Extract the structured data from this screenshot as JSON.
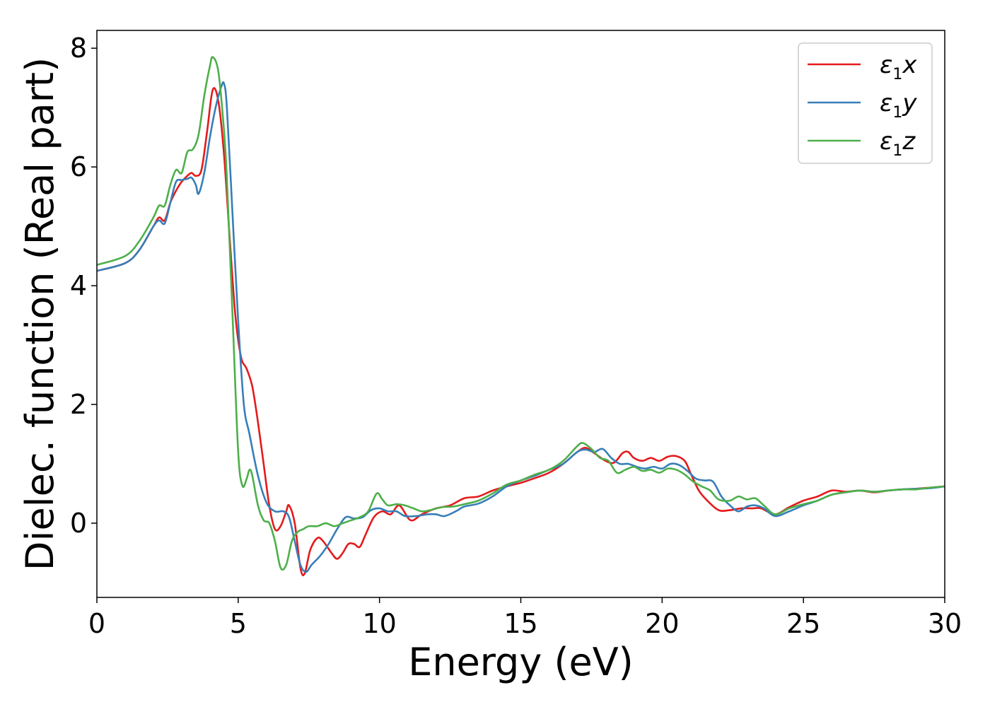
{
  "chart_data": {
    "type": "line",
    "xlabel": "Energy (eV)",
    "ylabel": "Dielec. function (Real part)",
    "xlim": [
      0,
      30
    ],
    "ylim": [
      -1.25,
      8.3
    ],
    "xticks": [
      0,
      5,
      10,
      15,
      20,
      25,
      30
    ],
    "yticks": [
      0,
      2,
      4,
      6,
      8
    ],
    "grid": false,
    "legend_position": "top-right",
    "series": [
      {
        "name": "ε1x",
        "color": "#e41a1c",
        "legend_symbol": "ε",
        "legend_sub": "1",
        "legend_suffix": "x",
        "points": [
          [
            0,
            4.25
          ],
          [
            1,
            4.38
          ],
          [
            1.5,
            4.6
          ],
          [
            2,
            5.0
          ],
          [
            2.2,
            5.15
          ],
          [
            2.4,
            5.1
          ],
          [
            2.6,
            5.4
          ],
          [
            2.8,
            5.6
          ],
          [
            3.0,
            5.75
          ],
          [
            3.2,
            5.85
          ],
          [
            3.35,
            5.9
          ],
          [
            3.5,
            5.85
          ],
          [
            3.7,
            5.95
          ],
          [
            3.9,
            6.6
          ],
          [
            4.1,
            7.3
          ],
          [
            4.3,
            7.1
          ],
          [
            4.5,
            6.2
          ],
          [
            4.7,
            4.8
          ],
          [
            4.9,
            3.5
          ],
          [
            5.1,
            2.8
          ],
          [
            5.3,
            2.6
          ],
          [
            5.5,
            2.3
          ],
          [
            5.7,
            1.7
          ],
          [
            5.9,
            1.0
          ],
          [
            6.1,
            0.3
          ],
          [
            6.3,
            -0.1
          ],
          [
            6.5,
            -0.05
          ],
          [
            6.7,
            0.2
          ],
          [
            6.8,
            0.3
          ],
          [
            7.0,
            0.0
          ],
          [
            7.2,
            -0.75
          ],
          [
            7.35,
            -0.85
          ],
          [
            7.55,
            -0.45
          ],
          [
            7.8,
            -0.25
          ],
          [
            8.0,
            -0.3
          ],
          [
            8.3,
            -0.5
          ],
          [
            8.5,
            -0.6
          ],
          [
            8.7,
            -0.5
          ],
          [
            8.9,
            -0.35
          ],
          [
            9.1,
            -0.35
          ],
          [
            9.3,
            -0.4
          ],
          [
            9.5,
            -0.2
          ],
          [
            9.8,
            0.1
          ],
          [
            10.1,
            0.2
          ],
          [
            10.4,
            0.15
          ],
          [
            10.7,
            0.3
          ],
          [
            11.1,
            0.05
          ],
          [
            11.5,
            0.15
          ],
          [
            12.0,
            0.25
          ],
          [
            12.5,
            0.3
          ],
          [
            13.0,
            0.42
          ],
          [
            13.5,
            0.45
          ],
          [
            14.0,
            0.55
          ],
          [
            14.5,
            0.62
          ],
          [
            15.0,
            0.68
          ],
          [
            15.5,
            0.76
          ],
          [
            16.0,
            0.85
          ],
          [
            16.5,
            1.0
          ],
          [
            17.0,
            1.2
          ],
          [
            17.3,
            1.27
          ],
          [
            17.6,
            1.18
          ],
          [
            18.0,
            1.05
          ],
          [
            18.3,
            1.02
          ],
          [
            18.6,
            1.18
          ],
          [
            18.8,
            1.2
          ],
          [
            19.0,
            1.1
          ],
          [
            19.3,
            1.05
          ],
          [
            19.6,
            1.1
          ],
          [
            19.9,
            1.05
          ],
          [
            20.2,
            1.12
          ],
          [
            20.5,
            1.13
          ],
          [
            20.8,
            1.05
          ],
          [
            21.0,
            0.85
          ],
          [
            21.3,
            0.55
          ],
          [
            21.6,
            0.38
          ],
          [
            22.0,
            0.22
          ],
          [
            22.4,
            0.22
          ],
          [
            22.8,
            0.25
          ],
          [
            23.2,
            0.25
          ],
          [
            23.5,
            0.25
          ],
          [
            24.0,
            0.15
          ],
          [
            24.5,
            0.27
          ],
          [
            25.0,
            0.38
          ],
          [
            25.5,
            0.45
          ],
          [
            26.0,
            0.55
          ],
          [
            26.5,
            0.53
          ],
          [
            27.0,
            0.55
          ],
          [
            27.5,
            0.52
          ],
          [
            28.0,
            0.55
          ],
          [
            28.5,
            0.57
          ],
          [
            29.0,
            0.58
          ],
          [
            29.5,
            0.6
          ],
          [
            30.0,
            0.62
          ]
        ]
      },
      {
        "name": "ε1y",
        "color": "#377eb8",
        "legend_symbol": "ε",
        "legend_sub": "1",
        "legend_suffix": "y",
        "points": [
          [
            0,
            4.25
          ],
          [
            1,
            4.38
          ],
          [
            1.5,
            4.6
          ],
          [
            2,
            5.0
          ],
          [
            2.2,
            5.1
          ],
          [
            2.4,
            5.05
          ],
          [
            2.6,
            5.4
          ],
          [
            2.8,
            5.75
          ],
          [
            3.0,
            5.78
          ],
          [
            3.2,
            5.8
          ],
          [
            3.35,
            5.82
          ],
          [
            3.5,
            5.7
          ],
          [
            3.6,
            5.55
          ],
          [
            3.8,
            5.9
          ],
          [
            4.0,
            6.5
          ],
          [
            4.2,
            7.0
          ],
          [
            4.4,
            7.35
          ],
          [
            4.5,
            7.4
          ],
          [
            4.6,
            7.0
          ],
          [
            4.8,
            5.2
          ],
          [
            5.0,
            3.4
          ],
          [
            5.2,
            2.0
          ],
          [
            5.4,
            1.5
          ],
          [
            5.7,
            0.8
          ],
          [
            6.0,
            0.35
          ],
          [
            6.3,
            0.2
          ],
          [
            6.6,
            0.2
          ],
          [
            6.8,
            0.1
          ],
          [
            7.0,
            -0.3
          ],
          [
            7.2,
            -0.7
          ],
          [
            7.4,
            -0.82
          ],
          [
            7.6,
            -0.7
          ],
          [
            7.9,
            -0.55
          ],
          [
            8.2,
            -0.35
          ],
          [
            8.5,
            -0.1
          ],
          [
            8.8,
            0.1
          ],
          [
            9.1,
            0.08
          ],
          [
            9.4,
            0.1
          ],
          [
            9.7,
            0.22
          ],
          [
            10.0,
            0.25
          ],
          [
            10.3,
            0.2
          ],
          [
            10.6,
            0.2
          ],
          [
            10.9,
            0.12
          ],
          [
            11.3,
            0.12
          ],
          [
            11.7,
            0.15
          ],
          [
            12.0,
            0.15
          ],
          [
            12.3,
            0.12
          ],
          [
            12.7,
            0.2
          ],
          [
            13.0,
            0.28
          ],
          [
            13.5,
            0.33
          ],
          [
            14.0,
            0.45
          ],
          [
            14.5,
            0.62
          ],
          [
            15.0,
            0.72
          ],
          [
            15.5,
            0.8
          ],
          [
            16.0,
            0.9
          ],
          [
            16.5,
            1.0
          ],
          [
            17.0,
            1.2
          ],
          [
            17.3,
            1.24
          ],
          [
            17.6,
            1.2
          ],
          [
            17.9,
            1.25
          ],
          [
            18.2,
            1.1
          ],
          [
            18.5,
            1.0
          ],
          [
            18.8,
            1.0
          ],
          [
            19.1,
            0.95
          ],
          [
            19.4,
            0.92
          ],
          [
            19.7,
            0.95
          ],
          [
            20.0,
            0.92
          ],
          [
            20.3,
            1.0
          ],
          [
            20.6,
            0.98
          ],
          [
            20.9,
            0.88
          ],
          [
            21.2,
            0.75
          ],
          [
            21.5,
            0.72
          ],
          [
            21.8,
            0.7
          ],
          [
            22.1,
            0.45
          ],
          [
            22.4,
            0.3
          ],
          [
            22.7,
            0.2
          ],
          [
            23.0,
            0.28
          ],
          [
            23.3,
            0.3
          ],
          [
            23.6,
            0.25
          ],
          [
            24.0,
            0.12
          ],
          [
            24.5,
            0.2
          ],
          [
            25.0,
            0.3
          ],
          [
            25.5,
            0.38
          ],
          [
            26.0,
            0.48
          ],
          [
            26.5,
            0.52
          ],
          [
            27.0,
            0.55
          ],
          [
            27.5,
            0.53
          ],
          [
            28.0,
            0.55
          ],
          [
            28.5,
            0.57
          ],
          [
            29.0,
            0.58
          ],
          [
            29.5,
            0.59
          ],
          [
            30.0,
            0.62
          ]
        ]
      },
      {
        "name": "ε1z",
        "color": "#4daf4a",
        "legend_symbol": "ε",
        "legend_sub": "1",
        "legend_suffix": "z",
        "points": [
          [
            0,
            4.35
          ],
          [
            1,
            4.5
          ],
          [
            1.5,
            4.75
          ],
          [
            2,
            5.15
          ],
          [
            2.2,
            5.35
          ],
          [
            2.4,
            5.35
          ],
          [
            2.6,
            5.7
          ],
          [
            2.8,
            5.95
          ],
          [
            3.0,
            5.9
          ],
          [
            3.2,
            6.25
          ],
          [
            3.4,
            6.3
          ],
          [
            3.6,
            6.55
          ],
          [
            3.8,
            7.2
          ],
          [
            4.0,
            7.7
          ],
          [
            4.1,
            7.85
          ],
          [
            4.3,
            7.6
          ],
          [
            4.5,
            6.6
          ],
          [
            4.6,
            5.8
          ],
          [
            4.8,
            3.5
          ],
          [
            5.0,
            1.2
          ],
          [
            5.15,
            0.63
          ],
          [
            5.3,
            0.75
          ],
          [
            5.4,
            0.9
          ],
          [
            5.5,
            0.8
          ],
          [
            5.7,
            0.3
          ],
          [
            5.9,
            0.05
          ],
          [
            6.1,
            0.0
          ],
          [
            6.3,
            -0.3
          ],
          [
            6.5,
            -0.75
          ],
          [
            6.7,
            -0.7
          ],
          [
            6.9,
            -0.3
          ],
          [
            7.1,
            -0.15
          ],
          [
            7.3,
            -0.1
          ],
          [
            7.5,
            -0.05
          ],
          [
            7.8,
            -0.05
          ],
          [
            8.1,
            0.0
          ],
          [
            8.4,
            -0.05
          ],
          [
            8.7,
            0.0
          ],
          [
            9.0,
            0.05
          ],
          [
            9.3,
            0.1
          ],
          [
            9.6,
            0.2
          ],
          [
            9.9,
            0.5
          ],
          [
            10.1,
            0.4
          ],
          [
            10.3,
            0.3
          ],
          [
            10.6,
            0.32
          ],
          [
            10.9,
            0.3
          ],
          [
            11.2,
            0.25
          ],
          [
            11.5,
            0.2
          ],
          [
            11.8,
            0.22
          ],
          [
            12.2,
            0.27
          ],
          [
            12.6,
            0.28
          ],
          [
            13.0,
            0.32
          ],
          [
            13.5,
            0.38
          ],
          [
            14.0,
            0.5
          ],
          [
            14.5,
            0.65
          ],
          [
            15.0,
            0.72
          ],
          [
            15.5,
            0.82
          ],
          [
            16.0,
            0.9
          ],
          [
            16.5,
            1.05
          ],
          [
            17.0,
            1.3
          ],
          [
            17.2,
            1.35
          ],
          [
            17.5,
            1.25
          ],
          [
            17.8,
            1.1
          ],
          [
            18.1,
            1.05
          ],
          [
            18.4,
            0.85
          ],
          [
            18.7,
            0.9
          ],
          [
            19.0,
            0.95
          ],
          [
            19.3,
            0.88
          ],
          [
            19.6,
            0.9
          ],
          [
            19.9,
            0.85
          ],
          [
            20.2,
            0.92
          ],
          [
            20.5,
            0.9
          ],
          [
            20.8,
            0.82
          ],
          [
            21.1,
            0.7
          ],
          [
            21.4,
            0.62
          ],
          [
            21.7,
            0.55
          ],
          [
            22.0,
            0.4
          ],
          [
            22.4,
            0.38
          ],
          [
            22.7,
            0.45
          ],
          [
            23.0,
            0.4
          ],
          [
            23.3,
            0.42
          ],
          [
            23.6,
            0.3
          ],
          [
            24.0,
            0.15
          ],
          [
            24.5,
            0.25
          ],
          [
            25.0,
            0.32
          ],
          [
            25.5,
            0.38
          ],
          [
            26.0,
            0.48
          ],
          [
            26.5,
            0.52
          ],
          [
            27.0,
            0.55
          ],
          [
            27.5,
            0.53
          ],
          [
            28.0,
            0.55
          ],
          [
            28.5,
            0.57
          ],
          [
            29.0,
            0.57
          ],
          [
            29.5,
            0.6
          ],
          [
            30.0,
            0.62
          ]
        ]
      }
    ]
  }
}
